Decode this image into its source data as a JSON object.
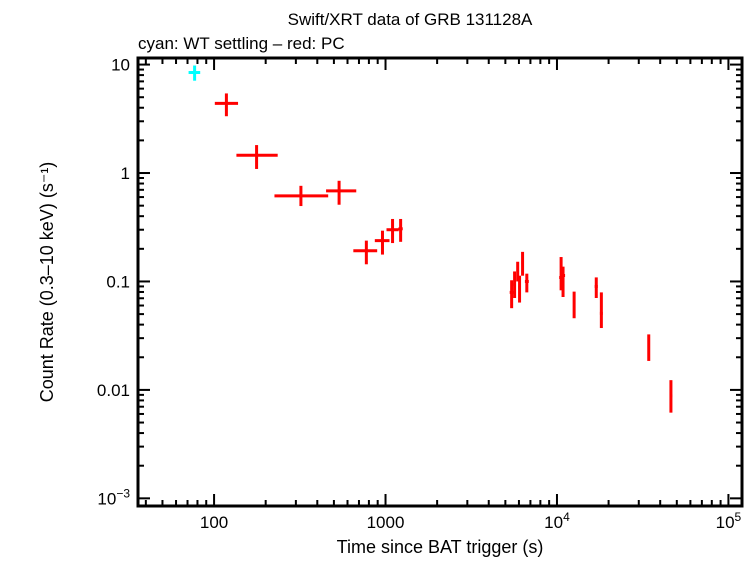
{
  "chart_data": {
    "type": "scatter",
    "title": "Swift/XRT data of GRB 131128A",
    "subtitle": "cyan: WT settling – red: PC",
    "xlabel": "Time since BAT trigger (s)",
    "ylabel": "Count Rate (0.3–10 keV) (s⁻¹)",
    "xscale": "log",
    "yscale": "log",
    "xlim": [
      36,
      120000
    ],
    "ylim": [
      0.00085,
      11.5
    ],
    "grid": false,
    "xticks": [
      {
        "v": 100,
        "label": "100"
      },
      {
        "v": 1000,
        "label": "1000"
      },
      {
        "v": 10000,
        "label": "10",
        "exp": "4"
      },
      {
        "v": 100000,
        "label": "10",
        "exp": "5"
      }
    ],
    "yticks": [
      {
        "v": 10,
        "label": "10"
      },
      {
        "v": 1,
        "label": "1"
      },
      {
        "v": 0.1,
        "label": "0.1"
      },
      {
        "v": 0.01,
        "label": "0.01"
      },
      {
        "v": 0.001,
        "label": "10",
        "exp": "−3"
      }
    ],
    "series": [
      {
        "name": "WT settling",
        "color": "#00ffff",
        "points": [
          {
            "x": 77,
            "xlo": 71,
            "xhi": 83,
            "y": 8.45,
            "ylo": 7.1,
            "yhi": 9.8
          }
        ]
      },
      {
        "name": "PC",
        "color": "#ff0000",
        "points": [
          {
            "x": 118,
            "xlo": 101,
            "xhi": 138,
            "y": 4.39,
            "ylo": 3.34,
            "yhi": 5.42
          },
          {
            "x": 177,
            "xlo": 135,
            "xhi": 235,
            "y": 1.46,
            "ylo": 1.09,
            "yhi": 1.81
          },
          {
            "x": 321,
            "xlo": 225,
            "xhi": 463,
            "y": 0.615,
            "ylo": 0.496,
            "yhi": 0.762
          },
          {
            "x": 536,
            "xlo": 450,
            "xhi": 675,
            "y": 0.684,
            "ylo": 0.51,
            "yhi": 0.848
          },
          {
            "x": 773,
            "xlo": 649,
            "xhi": 894,
            "y": 0.192,
            "ylo": 0.144,
            "yhi": 0.238
          },
          {
            "x": 960,
            "xlo": 866,
            "xhi": 1055,
            "y": 0.238,
            "ylo": 0.177,
            "yhi": 0.294
          },
          {
            "x": 1099,
            "xlo": 1013,
            "xhi": 1193,
            "y": 0.3,
            "ylo": 0.226,
            "yhi": 0.377
          },
          {
            "x": 1225,
            "xlo": 1190,
            "xhi": 1260,
            "y": 0.306,
            "ylo": 0.232,
            "yhi": 0.377
          },
          {
            "x": 5440,
            "xlo": 5300,
            "xhi": 5580,
            "y": 0.0793,
            "ylo": 0.0567,
            "yhi": 0.1026
          },
          {
            "x": 5660,
            "xlo": 5560,
            "xhi": 5760,
            "y": 0.0938,
            "ylo": 0.0704,
            "yhi": 0.1237
          },
          {
            "x": 5900,
            "xlo": 5820,
            "xhi": 5980,
            "y": 0.1236,
            "ylo": 0.1,
            "yhi": 0.152
          },
          {
            "x": 6050,
            "xlo": 5950,
            "xhi": 6150,
            "y": 0.0881,
            "ylo": 0.0639,
            "yhi": 0.113
          },
          {
            "x": 6300,
            "xlo": 6200,
            "xhi": 6400,
            "y": 0.149,
            "ylo": 0.113,
            "yhi": 0.1875
          },
          {
            "x": 6670,
            "xlo": 6500,
            "xhi": 6850,
            "y": 0.1,
            "ylo": 0.0793,
            "yhi": 0.118
          },
          {
            "x": 10570,
            "xlo": 10300,
            "xhi": 10850,
            "y": 0.1088,
            "ylo": 0.0829,
            "yhi": 0.168
          },
          {
            "x": 10850,
            "xlo": 10600,
            "xhi": 11150,
            "y": 0.1135,
            "ylo": 0.0719,
            "yhi": 0.137
          },
          {
            "x": 12590,
            "xlo": 12400,
            "xhi": 12800,
            "y": 0.0641,
            "ylo": 0.0458,
            "yhi": 0.0806
          },
          {
            "x": 16950,
            "xlo": 16600,
            "xhi": 17300,
            "y": 0.09,
            "ylo": 0.0704,
            "yhi": 0.109
          },
          {
            "x": 18150,
            "xlo": 17800,
            "xhi": 18500,
            "y": 0.0508,
            "ylo": 0.0372,
            "yhi": 0.0793
          },
          {
            "x": 34300,
            "xlo": 33800,
            "xhi": 34800,
            "y": 0.0259,
            "ylo": 0.0185,
            "yhi": 0.0325
          },
          {
            "x": 46200,
            "xlo": 45400,
            "xhi": 47000,
            "y": 0.00881,
            "ylo": 0.00617,
            "yhi": 0.0123
          }
        ]
      }
    ]
  }
}
